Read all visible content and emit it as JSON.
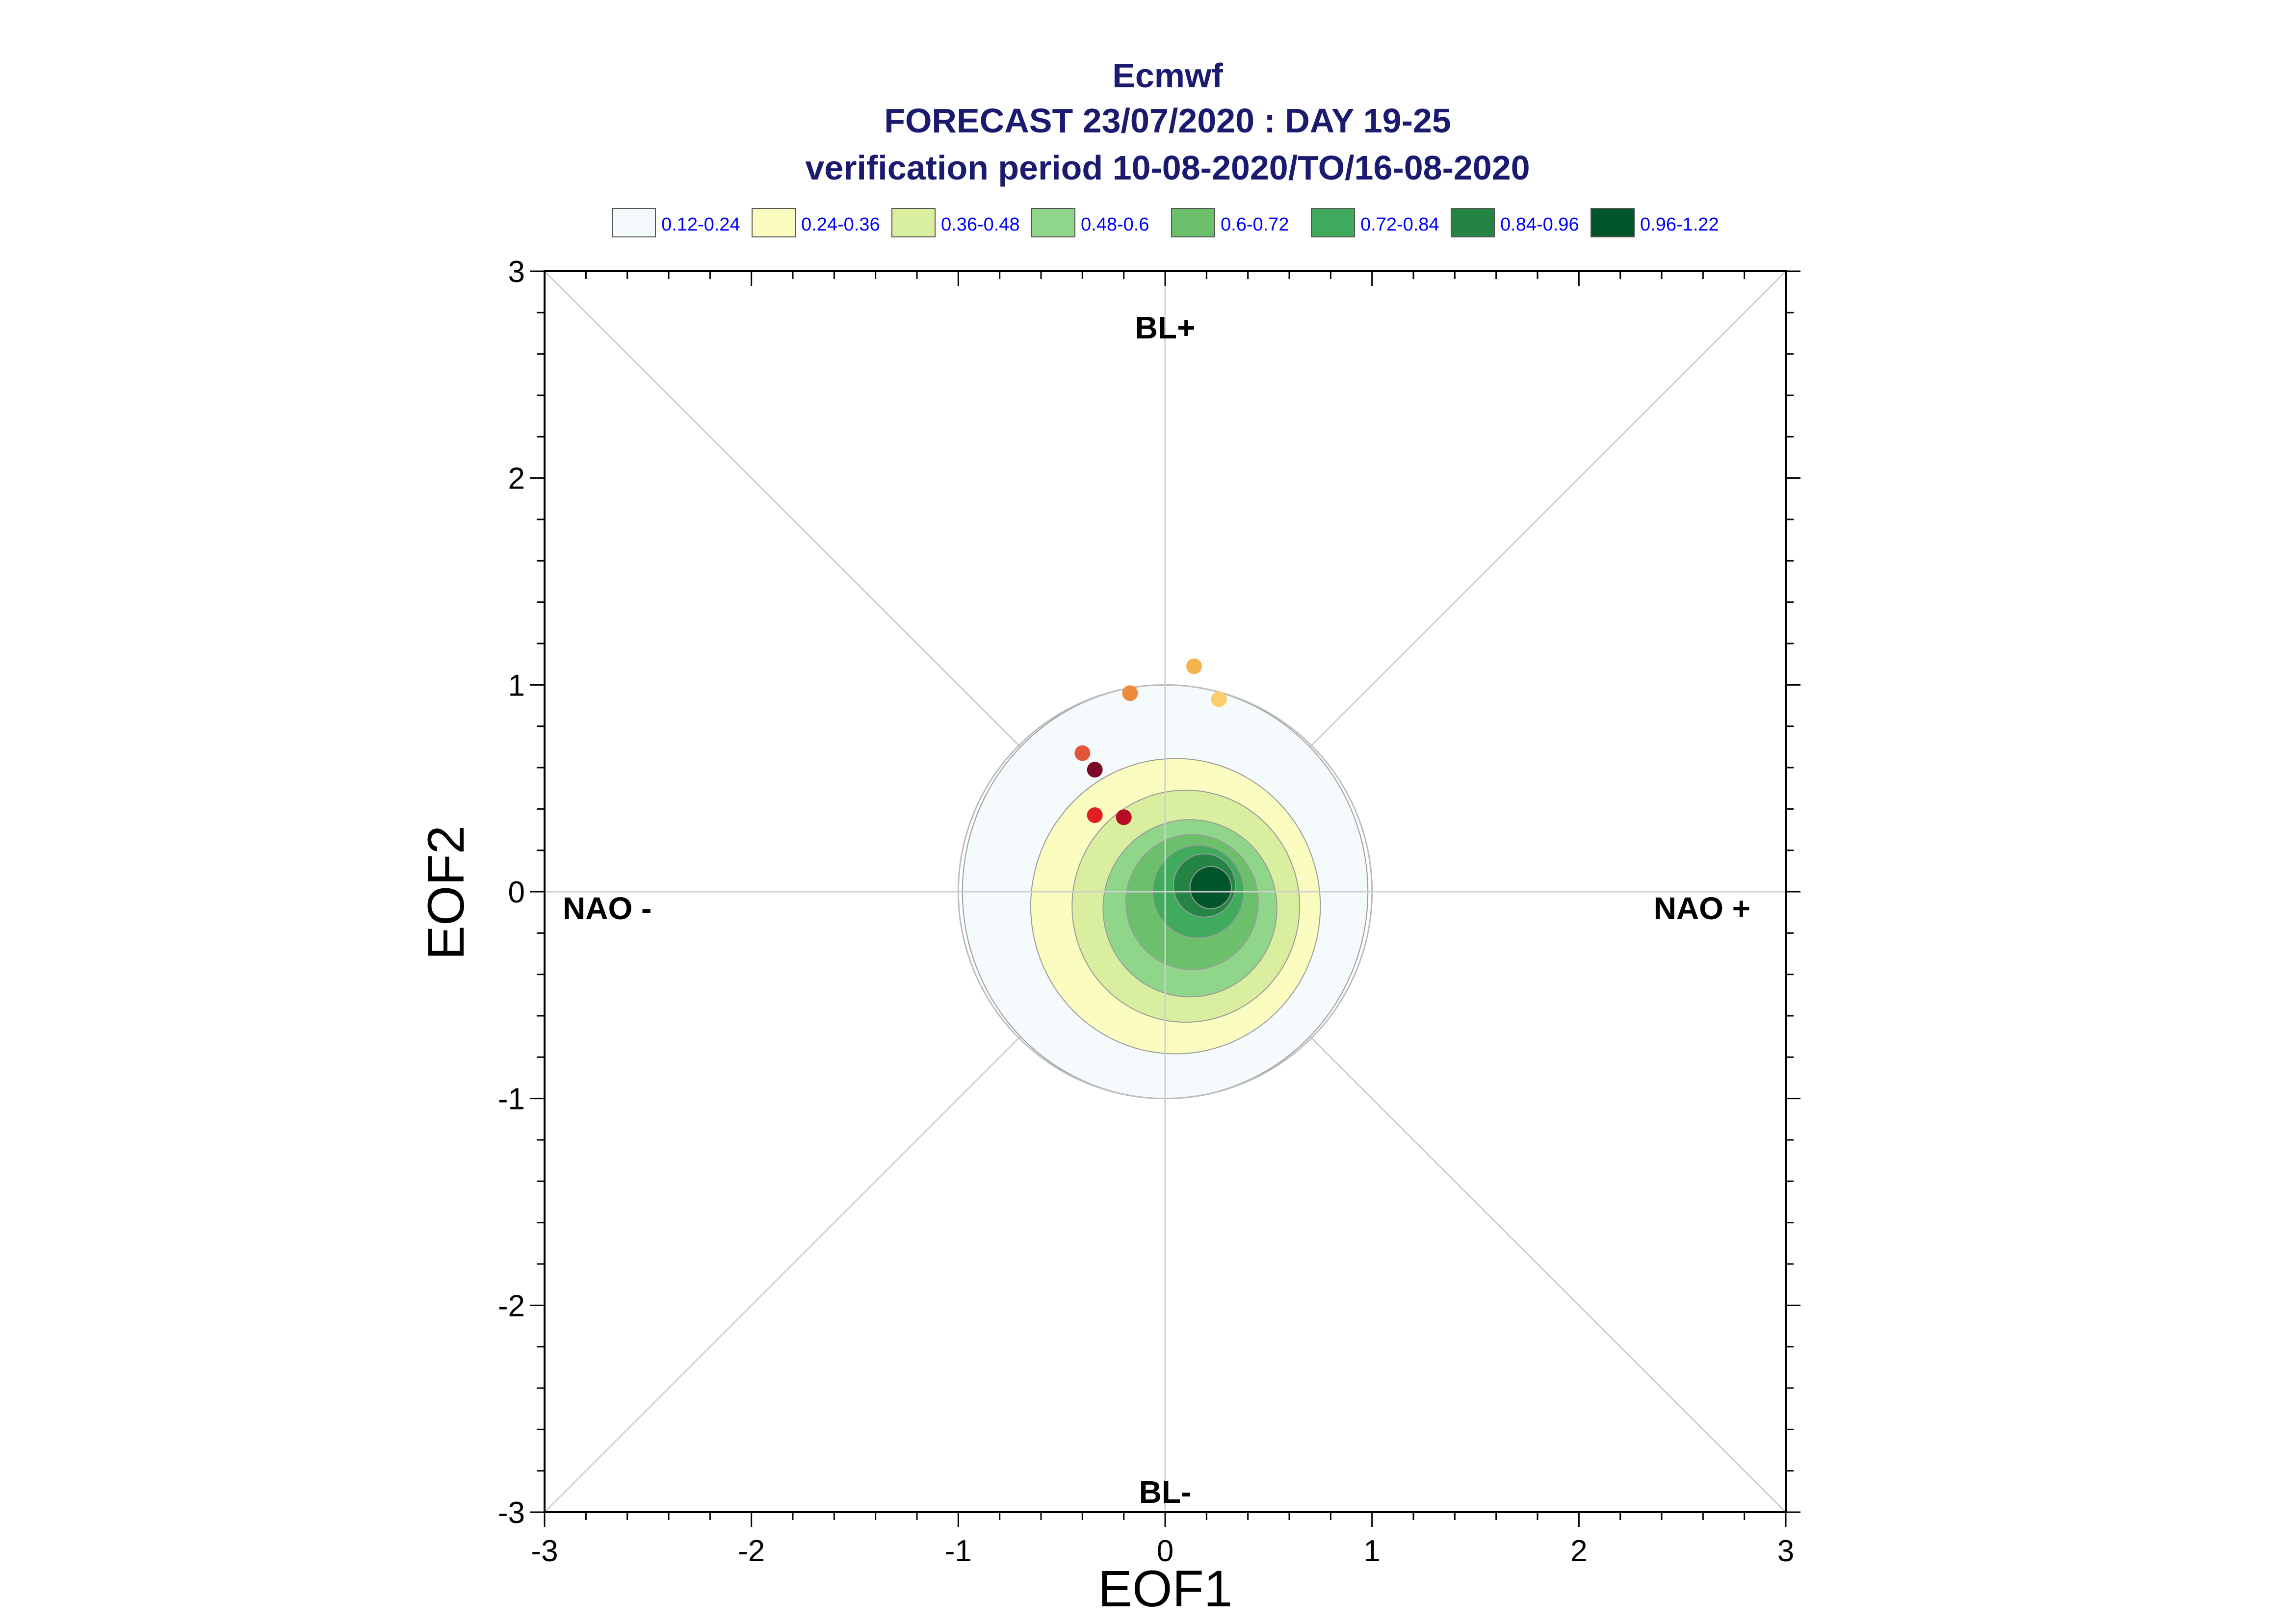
{
  "chart_data": {
    "type": "scatter",
    "title": "Ecmwf",
    "subtitle": "FORECAST 23/07/2020 : DAY 19-25",
    "subtitle2": "verification period 10-08-2020/TO/16-08-2020",
    "xlabel": "EOF1",
    "ylabel": "EOF2",
    "xlim": [
      -3,
      3
    ],
    "ylim": [
      -3,
      3
    ],
    "x_ticks": [
      "-3",
      "-2",
      "-1",
      "0",
      "1",
      "2",
      "3"
    ],
    "y_ticks": [
      "-3",
      "-2",
      "-1",
      "0",
      "1",
      "2",
      "3"
    ],
    "grid": false,
    "regime_labels": {
      "top": "BL+",
      "bottom": "BL-",
      "left": "NAO -",
      "right": "NAO +"
    },
    "legend": [
      {
        "label": "0.12-0.24",
        "color": "#f5fafd"
      },
      {
        "label": "0.24-0.36",
        "color": "#fbfcc0"
      },
      {
        "label": "0.36-0.48",
        "color": "#d9ee9e"
      },
      {
        "label": "0.48-0.6",
        "color": "#8fd68a"
      },
      {
        "label": "0.6-0.72",
        "color": "#6cc06c"
      },
      {
        "label": "0.72-0.84",
        "color": "#41ab5d"
      },
      {
        "label": "0.84-0.96",
        "color": "#238443"
      },
      {
        "label": "0.96-1.22",
        "color": "#00552a"
      }
    ],
    "reference_circle_radius": 1.0,
    "density_contours": [
      {
        "level": "0.12-0.24",
        "color": "#f5fafd",
        "cx": 0.0,
        "cy": 0.0,
        "r": 0.98
      },
      {
        "level": "0.24-0.36",
        "color": "#fbfcc0",
        "cx": 0.05,
        "cy": -0.07,
        "r": 0.7
      },
      {
        "level": "0.36-0.48",
        "color": "#d9ee9e",
        "cx": 0.1,
        "cy": -0.07,
        "r": 0.55
      },
      {
        "level": "0.48-0.6",
        "color": "#8fd68a",
        "cx": 0.12,
        "cy": -0.08,
        "r": 0.42
      },
      {
        "level": "0.6-0.72",
        "color": "#6cc06c",
        "cx": 0.13,
        "cy": -0.05,
        "r": 0.32
      },
      {
        "level": "0.72-0.84",
        "color": "#41ab5d",
        "cx": 0.16,
        "cy": 0.0,
        "r": 0.22
      },
      {
        "level": "0.84-0.96",
        "color": "#238443",
        "cx": 0.19,
        "cy": 0.03,
        "r": 0.15
      },
      {
        "level": "0.96-1.22",
        "color": "#00552a",
        "cx": 0.22,
        "cy": 0.02,
        "r": 0.1
      }
    ],
    "points": [
      {
        "x": 0.14,
        "y": 1.09,
        "color": "#f7b34d"
      },
      {
        "x": -0.17,
        "y": 0.96,
        "color": "#ee8a3a"
      },
      {
        "x": 0.26,
        "y": 0.93,
        "color": "#fdcc6b"
      },
      {
        "x": -0.4,
        "y": 0.67,
        "color": "#e2553a"
      },
      {
        "x": -0.34,
        "y": 0.59,
        "color": "#7a0a28"
      },
      {
        "x": -0.34,
        "y": 0.37,
        "color": "#e11d26"
      },
      {
        "x": -0.2,
        "y": 0.36,
        "color": "#b80d26"
      }
    ]
  }
}
